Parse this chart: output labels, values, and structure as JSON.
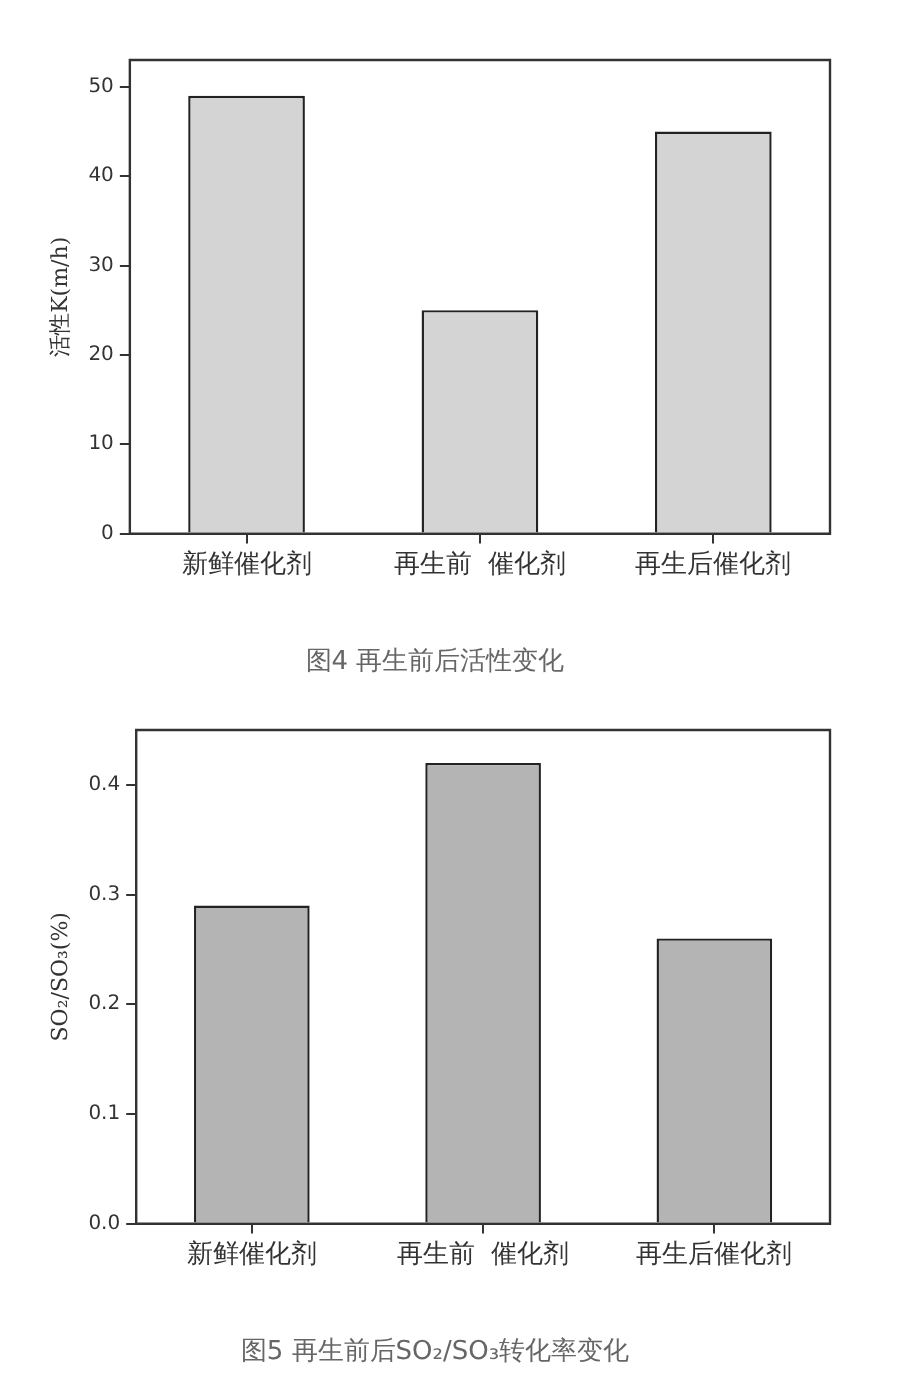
{
  "chart_data": [
    {
      "type": "bar",
      "title": "图4 再生前后活性变化",
      "ylabel": "活性K(m/h)",
      "categories": [
        "新鲜催化剂",
        "再生前  催化剂",
        "再生后催化剂"
      ],
      "values": [
        49,
        25,
        45
      ],
      "color": "#d4d4d4",
      "ylim": [
        0,
        53
      ],
      "yticks": [
        0,
        10,
        20,
        30,
        40,
        50
      ],
      "grid": false,
      "legend": false
    },
    {
      "type": "bar",
      "title": "图5 再生前后SO₂/SO₃转化率变化",
      "ylabel": "SO₂/SO₃(%)",
      "categories": [
        "新鲜催化剂",
        "再生前  催化剂",
        "再生后催化剂"
      ],
      "values": [
        0.29,
        0.42,
        0.26
      ],
      "color": "#b4b4b4",
      "ylim": [
        0,
        0.45
      ],
      "yticks": [
        {
          "value": 0,
          "label": "0.0"
        },
        0.1,
        0.2,
        0.3,
        0.4
      ],
      "grid": false,
      "legend": false
    }
  ]
}
